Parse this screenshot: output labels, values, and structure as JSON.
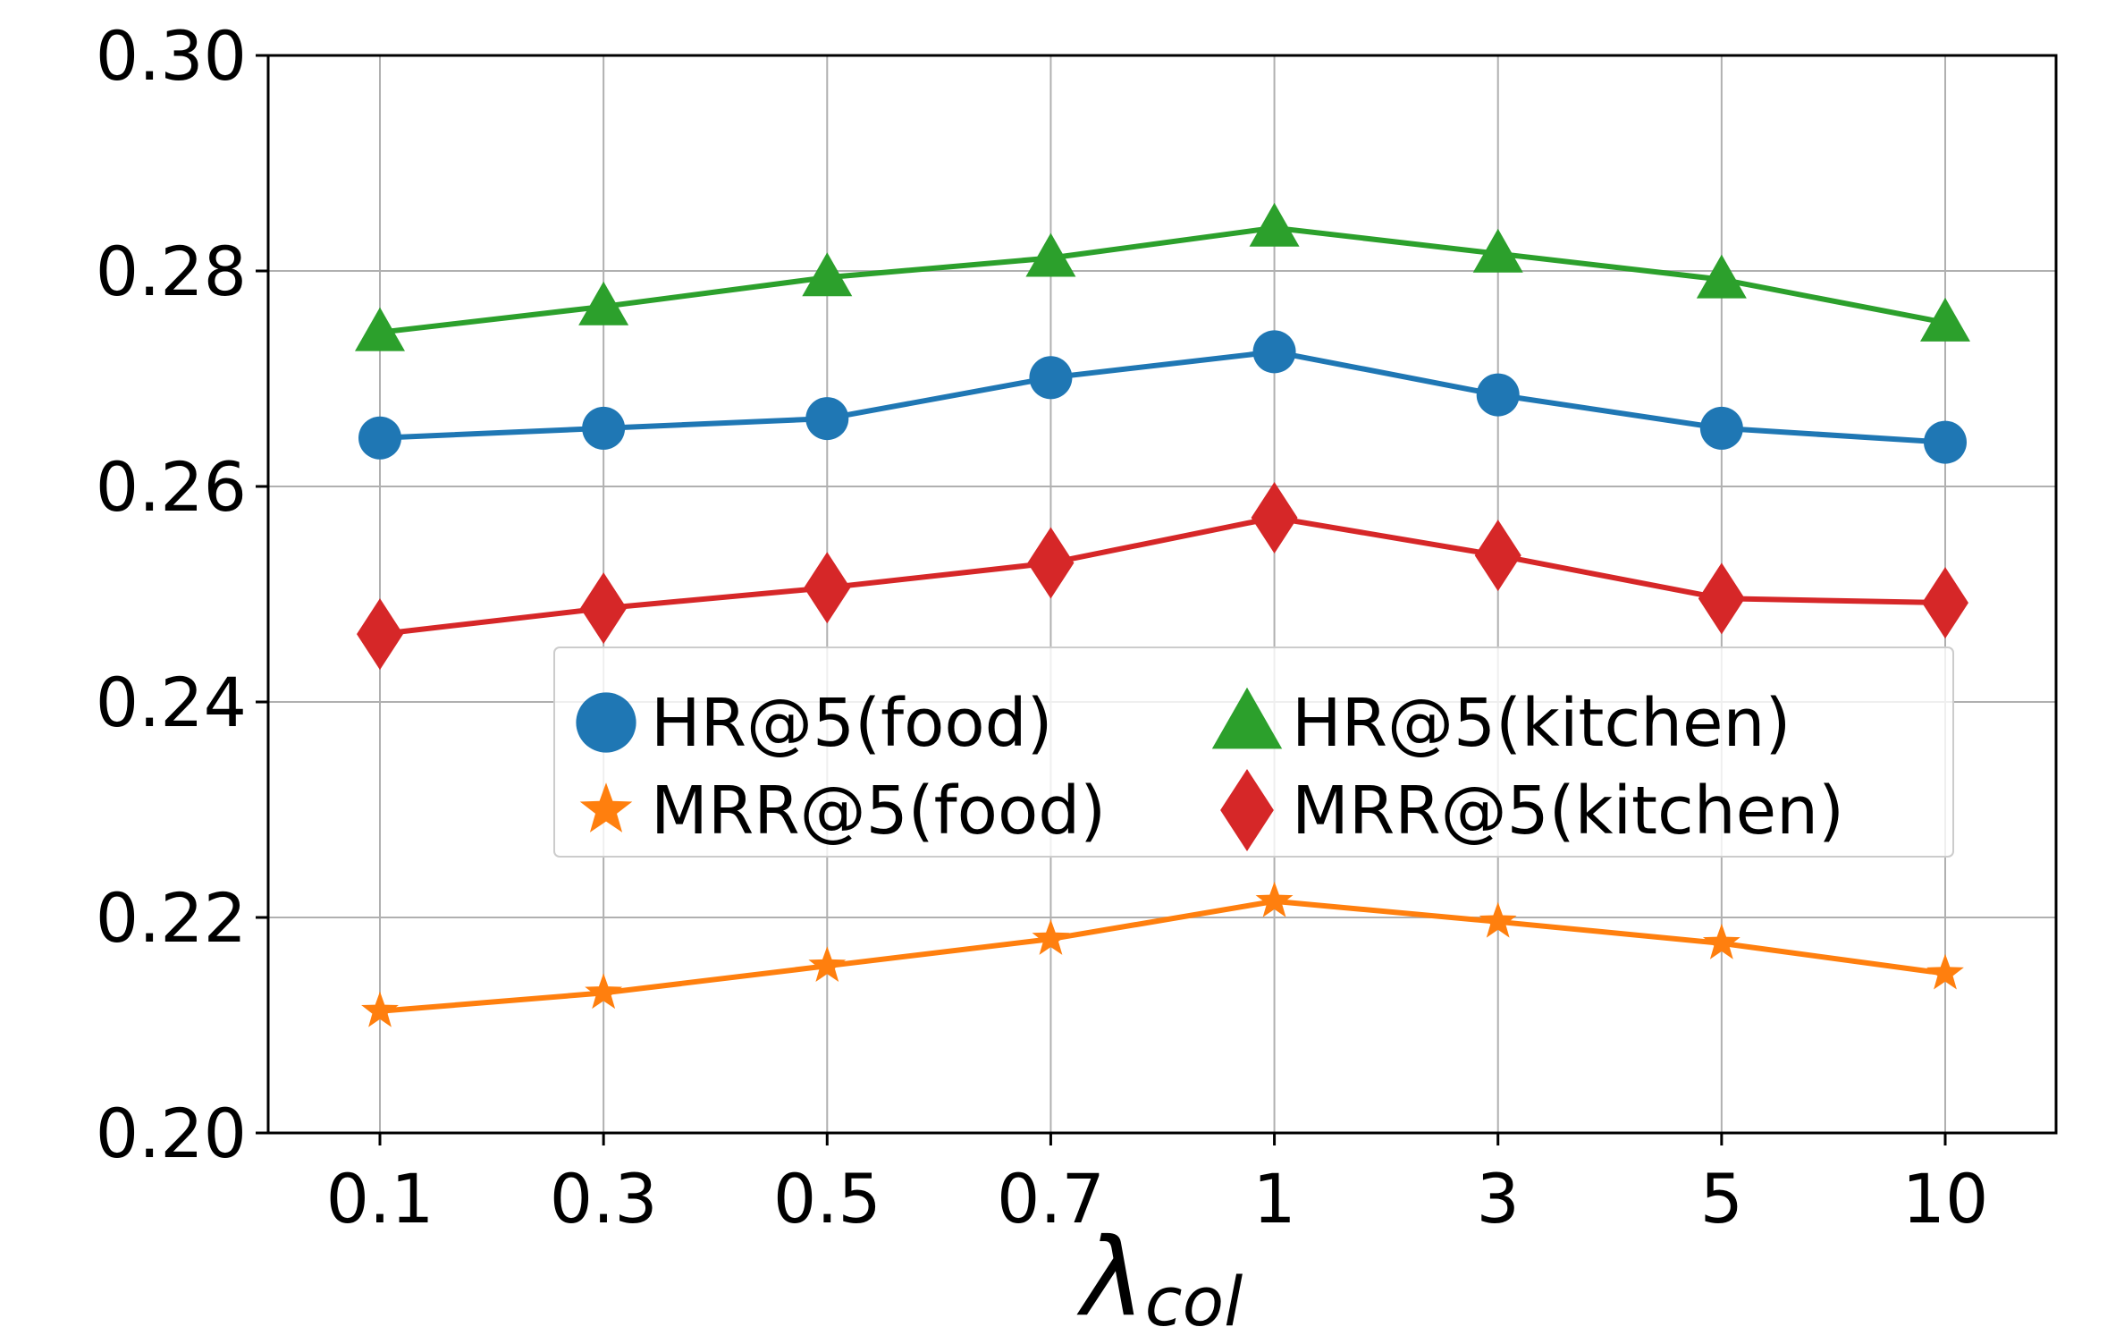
{
  "chart_data": {
    "type": "line",
    "categories": [
      "0.1",
      "0.3",
      "0.5",
      "0.7",
      "1",
      "3",
      "5",
      "10"
    ],
    "xlabel_main": "λ",
    "xlabel_sub": "col",
    "ylabel": "",
    "ylim": [
      0.2,
      0.3
    ],
    "yticks": [
      "0.20",
      "0.22",
      "0.24",
      "0.26",
      "0.28",
      "0.30"
    ],
    "ytick_values": [
      0.2,
      0.22,
      0.24,
      0.26,
      0.28,
      0.3
    ],
    "grid": true,
    "legend_position": "center",
    "series": [
      {
        "name": "HR@5(food)",
        "marker": "circle",
        "color": "#1f77b4",
        "values": [
          0.2645,
          0.2654,
          0.2663,
          0.2701,
          0.2725,
          0.2685,
          0.2654,
          0.2641
        ]
      },
      {
        "name": "MRR@5(food)",
        "marker": "star",
        "color": "#ff7f0e",
        "values": [
          0.2113,
          0.213,
          0.2155,
          0.218,
          0.2215,
          0.2196,
          0.2176,
          0.2148
        ]
      },
      {
        "name": "HR@5(kitchen)",
        "marker": "triangle",
        "color": "#2ca02c",
        "values": [
          0.2743,
          0.2767,
          0.2794,
          0.2812,
          0.284,
          0.2816,
          0.2792,
          0.2752
        ]
      },
      {
        "name": "MRR@5(kitchen)",
        "marker": "diamond",
        "color": "#d62728",
        "values": [
          0.2463,
          0.2487,
          0.2506,
          0.2529,
          0.2571,
          0.2536,
          0.2496,
          0.2492
        ]
      }
    ]
  }
}
